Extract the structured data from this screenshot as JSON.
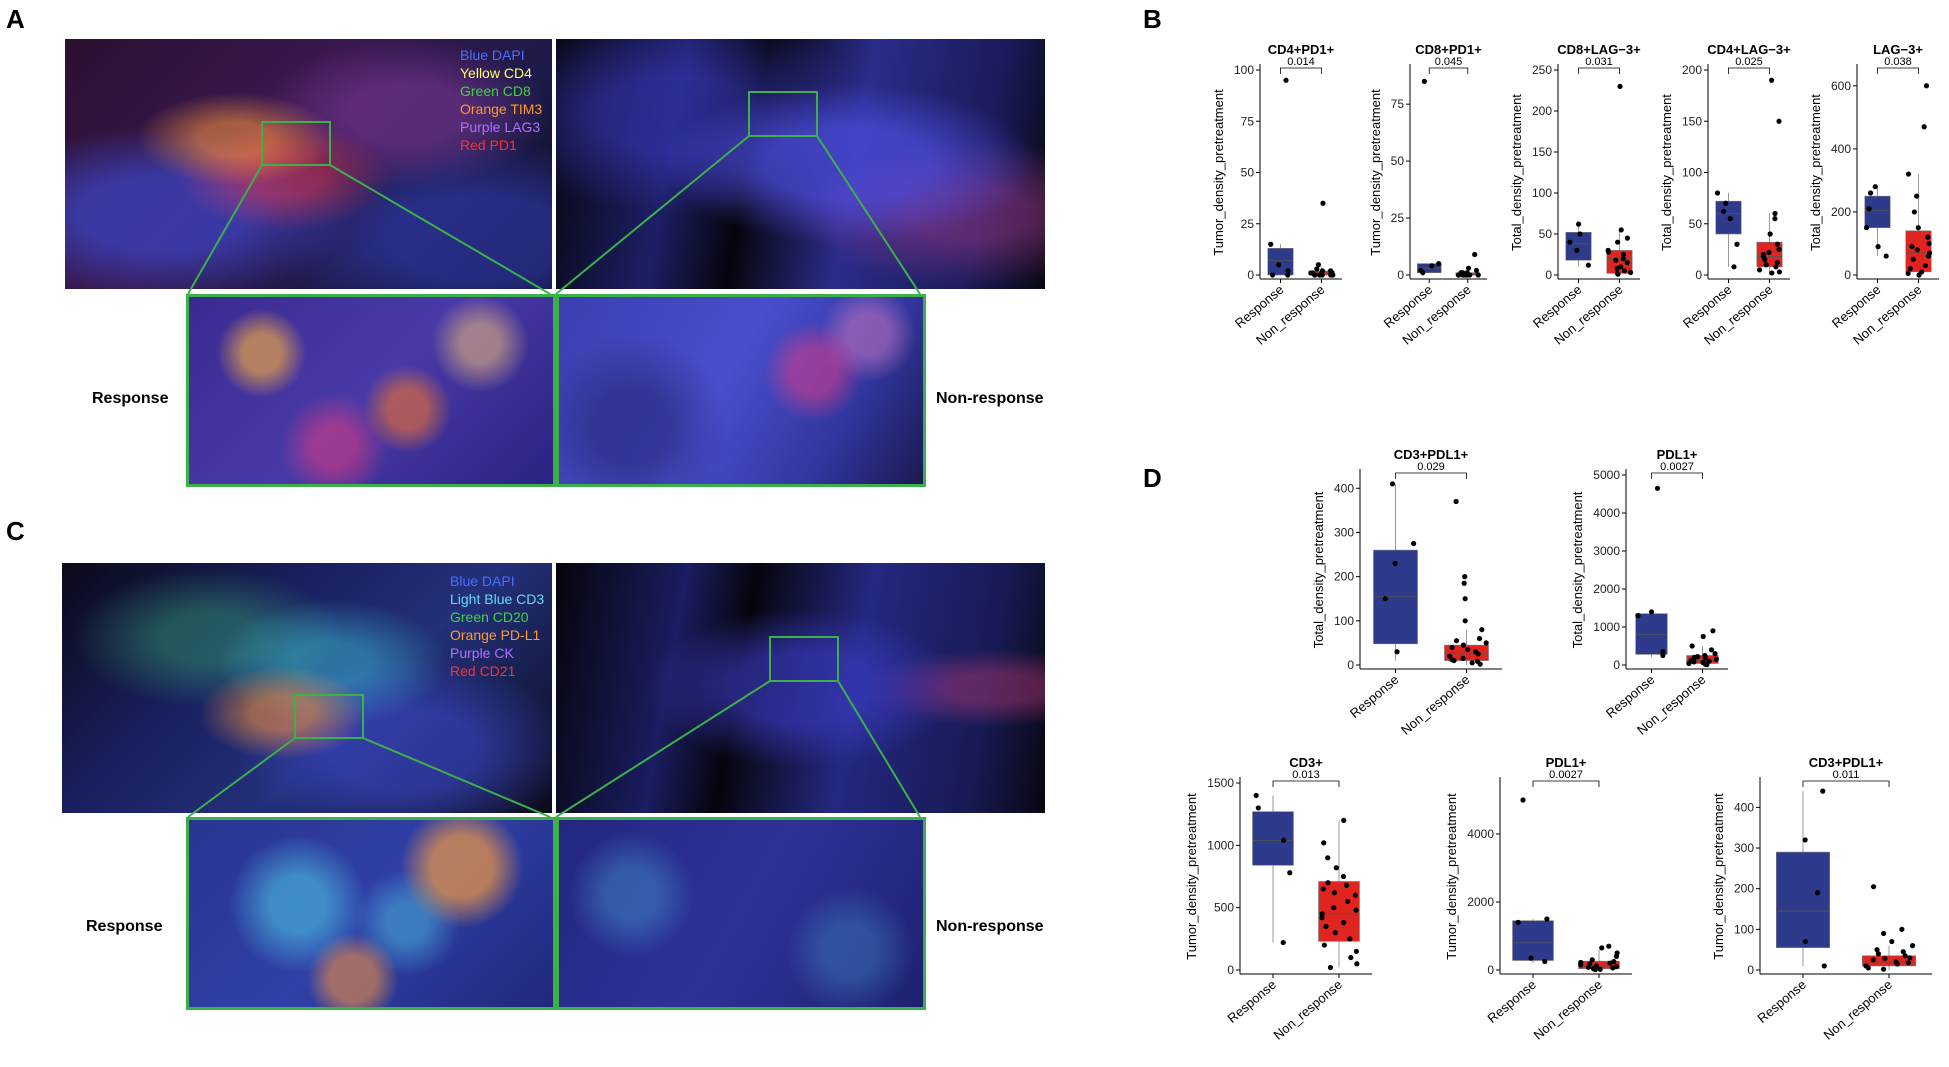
{
  "panels": {
    "A": {
      "letter": "A",
      "legend": [
        {
          "text": "Blue DAPI",
          "color": "#4a6cff"
        },
        {
          "text": "Yellow CD4",
          "color": "#ffff66"
        },
        {
          "text": "Green CD8",
          "color": "#43d143"
        },
        {
          "text": "Orange TIM3",
          "color": "#ff9933"
        },
        {
          "text": "Purple LAG3",
          "color": "#b070ff"
        },
        {
          "text": "Red PD1",
          "color": "#ff3030"
        }
      ],
      "left_label": "Response",
      "right_label": "Non-response"
    },
    "C": {
      "letter": "C",
      "legend": [
        {
          "text": "Blue DAPI",
          "color": "#4a6cff"
        },
        {
          "text": "Light Blue CD3",
          "color": "#66d9ff"
        },
        {
          "text": "Green CD20",
          "color": "#43d143"
        },
        {
          "text": "Orange PD-L1",
          "color": "#ff9933"
        },
        {
          "text": "Purple CK",
          "color": "#b070ff"
        },
        {
          "text": "Red CD21",
          "color": "#ff3030"
        }
      ],
      "left_label": "Response",
      "right_label": "Non-response"
    },
    "B": {
      "letter": "B"
    },
    "D": {
      "letter": "D"
    }
  },
  "colors": {
    "response": "#2e3a8c",
    "non_response": "#e0241f",
    "zoom_box": "#3db04a"
  },
  "chart_data": [
    {
      "panel": "B",
      "type": "box",
      "title": "CD4+PD1+",
      "ylabel": "Tumor_density_pretreatment",
      "categories": [
        "Response",
        "Non_response"
      ],
      "pvalue": "0.014",
      "ylim": [
        0,
        100
      ],
      "yticks": [
        0,
        25,
        50,
        75,
        100
      ],
      "boxes": [
        {
          "group": "Response",
          "min": 0,
          "q1": 0,
          "median": 7,
          "q3": 13,
          "max": 15
        },
        {
          "group": "Non_response",
          "min": 0,
          "q1": 0,
          "median": 1,
          "q3": 2,
          "max": 4
        }
      ],
      "points": [
        {
          "group": "Response",
          "values": [
            95,
            15,
            5,
            2,
            0,
            0
          ]
        },
        {
          "group": "Non_response",
          "values": [
            35,
            5,
            3,
            2,
            1,
            1,
            0,
            0,
            0,
            0,
            0,
            0,
            1,
            2
          ]
        }
      ]
    },
    {
      "panel": "B",
      "type": "box",
      "title": "CD8+PD1+",
      "ylabel": "Tumor_density_pretreatment",
      "categories": [
        "Response",
        "Non_response"
      ],
      "pvalue": "0.045",
      "ylim": [
        0,
        90
      ],
      "yticks": [
        0,
        25,
        50,
        75
      ],
      "boxes": [
        {
          "group": "Response",
          "min": 1,
          "q1": 1,
          "median": 3,
          "q3": 5,
          "max": 5
        },
        {
          "group": "Non_response",
          "min": 0,
          "q1": 0,
          "median": 0,
          "q3": 1,
          "max": 2
        }
      ],
      "points": [
        {
          "group": "Response",
          "values": [
            85,
            5,
            4,
            2,
            1
          ]
        },
        {
          "group": "Non_response",
          "values": [
            9,
            3,
            2,
            1,
            1,
            0,
            0,
            0,
            0,
            0,
            0,
            0,
            1,
            0
          ]
        }
      ]
    },
    {
      "panel": "B",
      "type": "box",
      "title": "CD8+LAG−3+",
      "ylabel": "Total_density_pretreatment",
      "categories": [
        "Response",
        "Non_response"
      ],
      "pvalue": "0.031",
      "ylim": [
        0,
        250
      ],
      "yticks": [
        0,
        50,
        100,
        150,
        200,
        250
      ],
      "boxes": [
        {
          "group": "Response",
          "min": 10,
          "q1": 18,
          "median": 38,
          "q3": 52,
          "max": 65
        },
        {
          "group": "Non_response",
          "min": 0,
          "q1": 2,
          "median": 20,
          "q3": 30,
          "max": 55
        }
      ],
      "points": [
        {
          "group": "Response",
          "values": [
            62,
            50,
            40,
            30,
            12
          ]
        },
        {
          "group": "Non_response",
          "values": [
            230,
            55,
            45,
            30,
            25,
            20,
            15,
            10,
            8,
            5,
            3,
            2,
            1,
            40,
            28,
            18
          ]
        }
      ]
    },
    {
      "panel": "B",
      "type": "box",
      "title": "CD4+LAG−3+",
      "ylabel": "Total_density_pretreatment",
      "categories": [
        "Response",
        "Non_response"
      ],
      "pvalue": "0.025",
      "ylim": [
        0,
        200
      ],
      "yticks": [
        0,
        50,
        100,
        150,
        200
      ],
      "boxes": [
        {
          "group": "Response",
          "min": 8,
          "q1": 40,
          "median": 60,
          "q3": 72,
          "max": 80
        },
        {
          "group": "Non_response",
          "min": 0,
          "q1": 8,
          "median": 18,
          "q3": 32,
          "max": 60
        }
      ],
      "points": [
        {
          "group": "Response",
          "values": [
            80,
            70,
            62,
            55,
            30,
            8
          ]
        },
        {
          "group": "Non_response",
          "values": [
            190,
            150,
            60,
            55,
            40,
            30,
            25,
            20,
            15,
            12,
            10,
            8,
            5,
            3,
            2,
            18,
            22
          ]
        }
      ]
    },
    {
      "panel": "B",
      "type": "box",
      "title": "LAG−3+",
      "ylabel": "Total_density_pretreatment",
      "categories": [
        "Response",
        "Non_response"
      ],
      "pvalue": "0.038",
      "ylim": [
        0,
        650
      ],
      "yticks": [
        0,
        200,
        400,
        600
      ],
      "boxes": [
        {
          "group": "Response",
          "min": 60,
          "q1": 150,
          "median": 205,
          "q3": 250,
          "max": 280
        },
        {
          "group": "Non_response",
          "min": 0,
          "q1": 10,
          "median": 70,
          "q3": 140,
          "max": 320
        }
      ],
      "points": [
        {
          "group": "Response",
          "values": [
            280,
            260,
            210,
            150,
            90,
            60
          ]
        },
        {
          "group": "Non_response",
          "values": [
            600,
            470,
            320,
            250,
            200,
            150,
            120,
            90,
            70,
            50,
            30,
            20,
            10,
            5,
            0,
            60,
            100,
            80
          ]
        }
      ]
    },
    {
      "panel": "D",
      "type": "box",
      "title": "CD3+PDL1+",
      "ylabel": "Total_density_pretreatment",
      "categories": [
        "Response",
        "Non_response"
      ],
      "pvalue": "0.029",
      "ylim": [
        0,
        430
      ],
      "yticks": [
        0,
        100,
        200,
        300,
        400
      ],
      "boxes": [
        {
          "group": "Response",
          "min": 10,
          "q1": 48,
          "median": 155,
          "q3": 260,
          "max": 410
        },
        {
          "group": "Non_response",
          "min": 0,
          "q1": 10,
          "median": 25,
          "q3": 45,
          "max": 80
        }
      ],
      "points": [
        {
          "group": "Response",
          "values": [
            410,
            275,
            230,
            150,
            30
          ]
        },
        {
          "group": "Non_response",
          "values": [
            370,
            200,
            185,
            150,
            100,
            80,
            60,
            50,
            40,
            30,
            25,
            20,
            15,
            10,
            5,
            2,
            35,
            45,
            55,
            12,
            8
          ]
        }
      ]
    },
    {
      "panel": "D",
      "type": "box",
      "title": "PDL1+",
      "ylabel": "Total_density_pretreatment",
      "categories": [
        "Response",
        "Non_response"
      ],
      "pvalue": "0.0027",
      "ylim": [
        0,
        5000
      ],
      "yticks": [
        0,
        1000,
        2000,
        3000,
        4000,
        5000
      ],
      "boxes": [
        {
          "group": "Response",
          "min": 200,
          "q1": 280,
          "median": 800,
          "q3": 1350,
          "max": 1400
        },
        {
          "group": "Non_response",
          "min": 0,
          "q1": 40,
          "median": 120,
          "q3": 250,
          "max": 500
        }
      ],
      "points": [
        {
          "group": "Response",
          "values": [
            4650,
            1400,
            1300,
            350,
            250
          ]
        },
        {
          "group": "Non_response",
          "values": [
            900,
            750,
            500,
            400,
            300,
            250,
            200,
            150,
            120,
            100,
            80,
            60,
            40,
            20,
            10,
            180,
            220
          ]
        }
      ]
    },
    {
      "panel": "D",
      "type": "box",
      "title": "CD3+",
      "ylabel": "Tumor_density_pretreatment",
      "categories": [
        "Response",
        "Non_response"
      ],
      "pvalue": "0.013",
      "ylim": [
        0,
        1500
      ],
      "yticks": [
        0,
        500,
        1000,
        1500
      ],
      "boxes": [
        {
          "group": "Response",
          "min": 220,
          "q1": 840,
          "median": 1040,
          "q3": 1270,
          "max": 1400
        },
        {
          "group": "Non_response",
          "min": 20,
          "q1": 230,
          "median": 450,
          "q3": 710,
          "max": 1200
        }
      ],
      "points": [
        {
          "group": "Response",
          "values": [
            1400,
            1300,
            1040,
            780,
            220
          ]
        },
        {
          "group": "Non_response",
          "values": [
            1200,
            1020,
            900,
            820,
            750,
            700,
            650,
            600,
            550,
            500,
            450,
            420,
            380,
            350,
            300,
            250,
            200,
            150,
            100,
            50,
            20,
            480,
            620,
            680
          ]
        }
      ]
    },
    {
      "panel": "D",
      "type": "box",
      "title": "PDL1+",
      "ylabel": "Tumor_density_pretreatment",
      "categories": [
        "Response",
        "Non_response"
      ],
      "pvalue": "0.0027",
      "ylim": [
        0,
        5500
      ],
      "yticks": [
        0,
        2000,
        4000
      ],
      "boxes": [
        {
          "group": "Response",
          "min": 200,
          "q1": 280,
          "median": 800,
          "q3": 1450,
          "max": 1500
        },
        {
          "group": "Non_response",
          "min": 0,
          "q1": 40,
          "median": 120,
          "q3": 260,
          "max": 600
        }
      ],
      "points": [
        {
          "group": "Response",
          "values": [
            5000,
            1500,
            1400,
            350,
            250
          ]
        },
        {
          "group": "Non_response",
          "values": [
            700,
            650,
            500,
            400,
            300,
            250,
            200,
            150,
            120,
            100,
            80,
            60,
            40,
            20,
            10,
            180,
            220
          ]
        }
      ]
    },
    {
      "panel": "D",
      "type": "box",
      "title": "CD3+PDL1+",
      "ylabel": "Tumor_density_pretreatment",
      "categories": [
        "Response",
        "Non_response"
      ],
      "pvalue": "0.011",
      "ylim": [
        0,
        460
      ],
      "yticks": [
        0,
        100,
        200,
        300,
        400
      ],
      "boxes": [
        {
          "group": "Response",
          "min": 10,
          "q1": 55,
          "median": 145,
          "q3": 290,
          "max": 440
        },
        {
          "group": "Non_response",
          "min": 0,
          "q1": 10,
          "median": 20,
          "q3": 35,
          "max": 60
        }
      ],
      "points": [
        {
          "group": "Response",
          "values": [
            440,
            320,
            190,
            70,
            10
          ]
        },
        {
          "group": "Non_response",
          "values": [
            205,
            100,
            90,
            70,
            60,
            50,
            40,
            35,
            30,
            25,
            20,
            15,
            10,
            5,
            2,
            45,
            28,
            18
          ]
        }
      ]
    }
  ]
}
